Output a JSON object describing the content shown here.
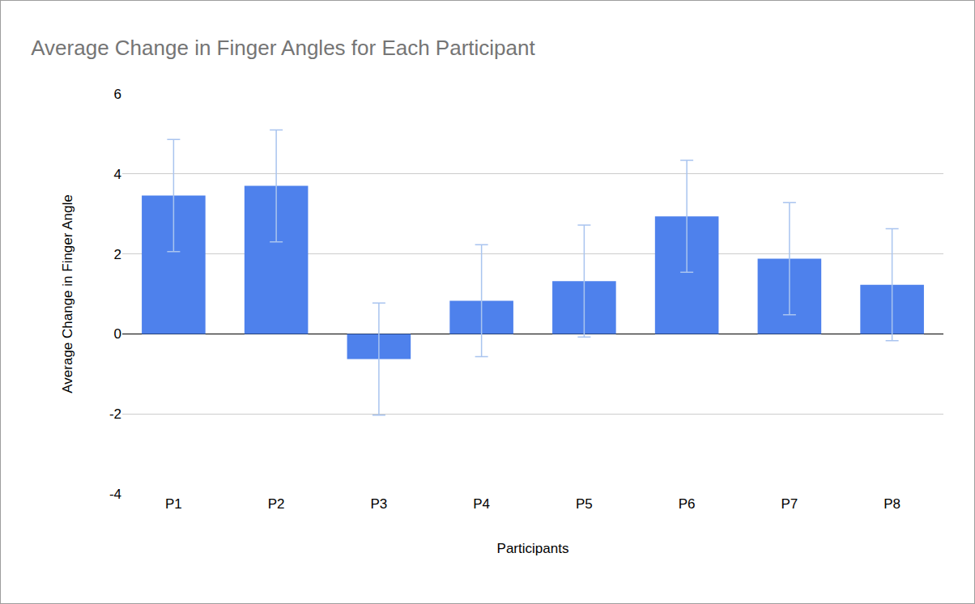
{
  "chart_data": {
    "type": "bar",
    "title": "Average Change in Finger Angles for Each Participant",
    "x_label": "Participants",
    "y_label": "Average Change in Finger Angle",
    "categories": [
      "P1",
      "P2",
      "P3",
      "P4",
      "P5",
      "P6",
      "P7",
      "P8"
    ],
    "values": [
      3.46,
      3.7,
      -0.63,
      0.83,
      1.32,
      2.94,
      1.88,
      1.23
    ],
    "errors": [
      1.4,
      1.4,
      1.4,
      1.4,
      1.4,
      1.4,
      1.4,
      1.4
    ],
    "color": "#4e81ec",
    "ylim": [
      -4,
      6
    ],
    "yticks": [
      -4,
      -2,
      0,
      2,
      4,
      6
    ],
    "grid": true
  }
}
